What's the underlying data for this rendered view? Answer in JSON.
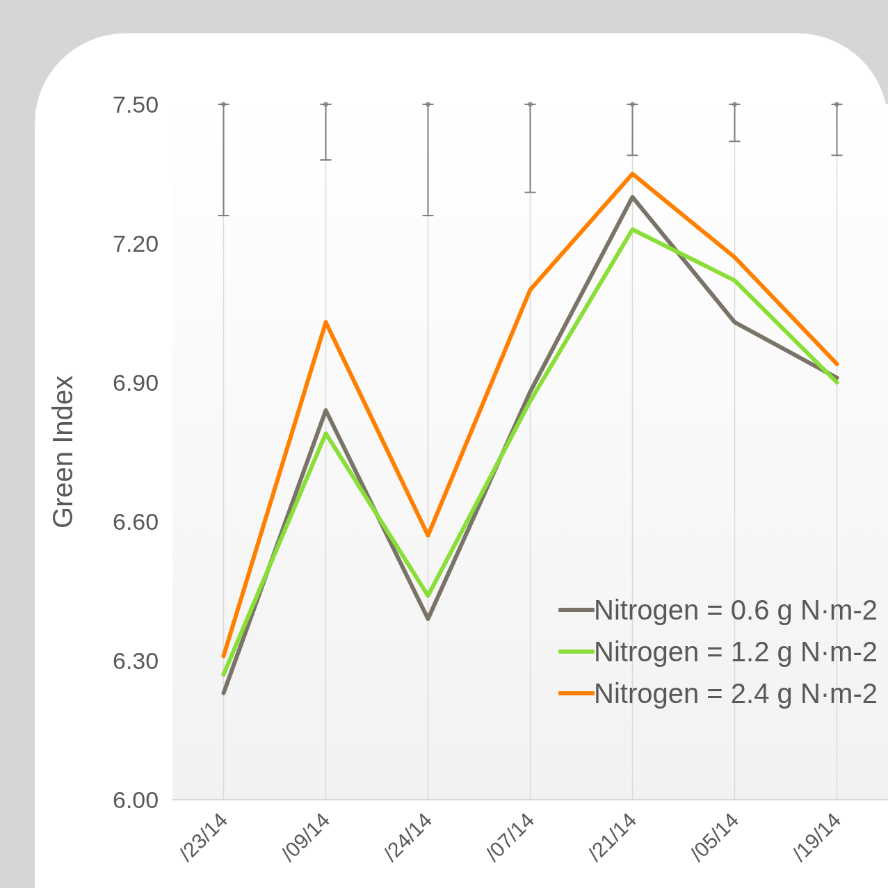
{
  "chart_data": {
    "type": "line",
    "ylabel": "Green Index",
    "categories": [
      "/23/14",
      "/09/14",
      "/24/14",
      "/07/14",
      "/21/14",
      "/05/14",
      "/19/14"
    ],
    "series": [
      {
        "name": "Nitrogen = 0.6 g N·m-2",
        "color": "#7a7468",
        "values": [
          6.23,
          6.84,
          6.39,
          6.88,
          7.3,
          7.03,
          6.91
        ]
      },
      {
        "name": "Nitrogen = 1.2 g N·m-2",
        "color": "#8ade38",
        "values": [
          6.27,
          6.79,
          6.44,
          6.86,
          7.23,
          7.12,
          6.9
        ]
      },
      {
        "name": "Nitrogen = 2.4 g N·m-2",
        "color": "#ff8000",
        "values": [
          6.31,
          7.03,
          6.57,
          7.1,
          7.35,
          7.17,
          6.94
        ]
      },
      {
        "type": "scatter",
        "marker": "circle",
        "color": "#7f7f7f",
        "values": [
          7.5,
          7.5,
          7.5,
          7.5,
          7.5,
          7.5,
          7.5
        ],
        "errors": [
          [
            7.26,
            7.5
          ],
          [
            7.38,
            7.5
          ],
          [
            7.26,
            7.5
          ],
          [
            7.31,
            7.5
          ],
          [
            7.39,
            7.5
          ],
          [
            7.42,
            7.5
          ],
          [
            7.39,
            7.5
          ]
        ]
      }
    ],
    "ylim": [
      6.0,
      7.5
    ],
    "yticks": [
      {
        "value": 6.0,
        "label": "6.00"
      },
      {
        "value": 6.3,
        "label": "6.30"
      },
      {
        "value": 6.6,
        "label": "6.60"
      },
      {
        "value": 6.9,
        "label": "6.90"
      },
      {
        "value": 7.2,
        "label": "7.20"
      },
      {
        "value": 7.5,
        "label": "7.50"
      }
    ],
    "grid": "x",
    "legend": "bottom right",
    "marker": "none",
    "line_style": "solid"
  }
}
